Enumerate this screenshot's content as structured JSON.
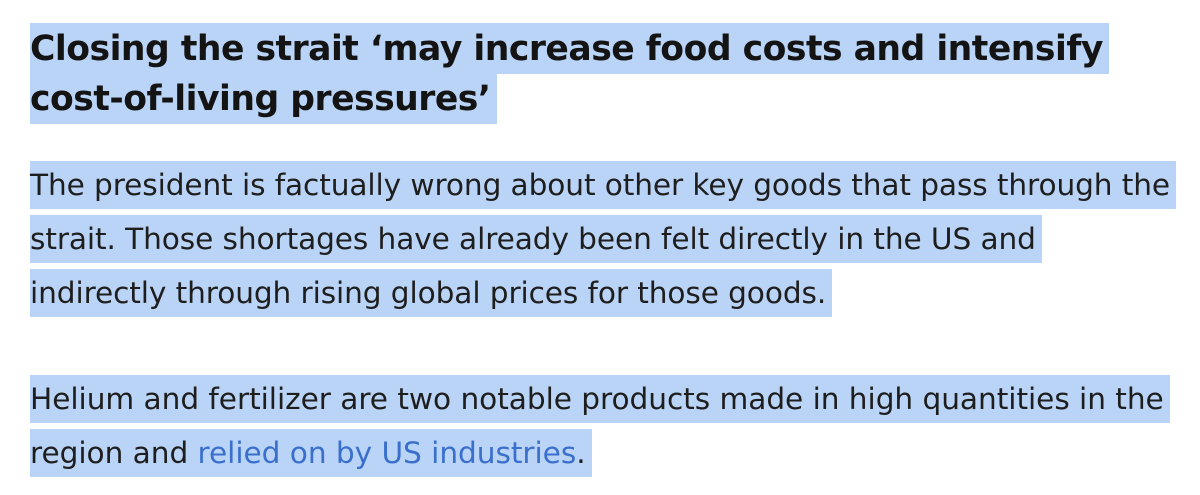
{
  "article": {
    "heading": "Closing the strait ‘may increase food costs and intensify cost-of-living pressures’",
    "paragraph_1": "The president is factually wrong about other key goods that pass through the strait. Those shortages have already been felt directly in the US and indirectly through rising global prices for those goods.",
    "paragraph_2_before_link": "Helium and fertilizer are two notable products made in high quantities in the region and ",
    "paragraph_2_link_text": "relied on by US industries",
    "paragraph_2_after_link": "."
  },
  "colors": {
    "selection_highlight": "#bad4f7",
    "link": "#3a6fcc",
    "text": "#1e1e1e"
  }
}
